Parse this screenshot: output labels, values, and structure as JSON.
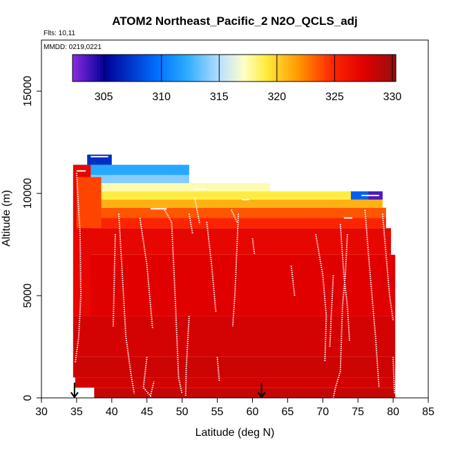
{
  "chart_data": {
    "type": "heatmap",
    "title": "ATOM2 Northeast_Pacific_2 N2O_QCLS_adj",
    "flights_note": "Flts: 10,11",
    "dates_note": "MMDD: 0219,0221",
    "xlabel": "Latitude (deg N)",
    "ylabel": "Altitude (m)",
    "xlim": [
      30,
      85
    ],
    "ylim": [
      0,
      17500
    ],
    "x_ticks": [
      30,
      35,
      40,
      45,
      50,
      55,
      60,
      65,
      70,
      75,
      80,
      85
    ],
    "y_ticks": [
      0,
      5000,
      10000,
      15000
    ],
    "colorbar": {
      "range": [
        302.3,
        330.3
      ],
      "ticks": [
        305,
        310,
        315,
        320,
        325,
        330
      ],
      "dividers": [
        305,
        310,
        315,
        320,
        325,
        330
      ]
    },
    "arrow_latitudes": [
      34.7,
      61.3
    ],
    "curtain_layers": [
      {
        "alt": [
          0,
          500
        ],
        "lat": [
          37.5,
          80.3
        ],
        "value": 328.5
      },
      {
        "alt": [
          500,
          1000
        ],
        "lat": [
          34.8,
          80.3
        ],
        "value": 328.0
      },
      {
        "alt": [
          1000,
          2000
        ],
        "lat": [
          34.5,
          80.3
        ],
        "value": 328.3
      },
      {
        "alt": [
          2000,
          4000
        ],
        "lat": [
          34.5,
          80.3
        ],
        "value": 328.0
      },
      {
        "alt": [
          4000,
          7000
        ],
        "lat": [
          35.0,
          80.3
        ],
        "value": 327.5
      },
      {
        "alt": [
          7000,
          8300
        ],
        "lat": [
          35.0,
          79.7
        ],
        "value": 327.0
      },
      {
        "alt": [
          8300,
          8800
        ],
        "lat": [
          35.0,
          79.0
        ],
        "value": 325.0
      },
      {
        "alt": [
          8800,
          9300
        ],
        "lat": [
          35.0,
          79.0
        ],
        "value": 323.5
      },
      {
        "alt": [
          9300,
          9700
        ],
        "lat": [
          35.0,
          78.5
        ],
        "value": 321.0
      },
      {
        "alt": [
          9700,
          10100
        ],
        "lat": [
          35.0,
          78.5
        ],
        "value": 319.0
      },
      {
        "alt": [
          10100,
          10500
        ],
        "lat": [
          35.0,
          62.5
        ],
        "value": 317.5
      },
      {
        "alt": [
          10500,
          10900
        ],
        "lat": [
          35.0,
          51.0
        ],
        "value": 314.0
      },
      {
        "alt": [
          10900,
          11400
        ],
        "lat": [
          35.0,
          51.0
        ],
        "value": 312.0
      },
      {
        "alt": [
          11400,
          11900
        ],
        "lat": [
          36.5,
          40.0
        ],
        "value": 307.0
      }
    ],
    "west_edge_columns": [
      {
        "lat": [
          34.5,
          37.0
        ],
        "alt": [
          4000,
          11400
        ],
        "value": 327.0
      },
      {
        "lat": [
          35.0,
          38.5
        ],
        "alt": [
          8300,
          10800
        ],
        "value": 324.0
      }
    ],
    "high_lat_patch": [
      {
        "lat": [
          74.0,
          78.5
        ],
        "alt": [
          9700,
          10100
        ],
        "value": 309.0
      },
      {
        "lat": [
          76.5,
          78.5
        ],
        "alt": [
          9700,
          10100
        ],
        "value": 303.5
      }
    ],
    "flight_track_segments": [
      [
        [
          35.0,
          11000
        ],
        [
          35.5,
          8000
        ],
        [
          35.6,
          5000
        ],
        [
          35.3,
          3000
        ],
        [
          34.8,
          1700
        ]
      ],
      [
        [
          40.5,
          8000
        ],
        [
          40.3,
          5000
        ],
        [
          40.2,
          3500
        ]
      ],
      [
        [
          41.0,
          9000
        ],
        [
          41.5,
          6000
        ],
        [
          42.0,
          3000
        ],
        [
          42.8,
          1000
        ],
        [
          43.2,
          200
        ]
      ],
      [
        [
          44.0,
          8800
        ],
        [
          45.0,
          6500
        ],
        [
          45.8,
          3400
        ]
      ],
      [
        [
          45.0,
          2000
        ],
        [
          44.5,
          500
        ],
        [
          45.5,
          100
        ],
        [
          46.0,
          800
        ]
      ],
      [
        [
          47.5,
          9200
        ],
        [
          48.5,
          8600
        ],
        [
          49.0,
          5000
        ],
        [
          49.5,
          1000
        ],
        [
          50.0,
          200
        ]
      ],
      [
        [
          51.0,
          9000
        ],
        [
          51.5,
          8000
        ]
      ],
      [
        [
          51.8,
          9800
        ],
        [
          52.5,
          8500
        ]
      ],
      [
        [
          51.0,
          4000
        ],
        [
          50.6,
          1500
        ],
        [
          50.5,
          100
        ]
      ],
      [
        [
          53.5,
          8600
        ],
        [
          54.2,
          6500
        ],
        [
          54.8,
          4200
        ]
      ],
      [
        [
          55.0,
          2000
        ],
        [
          55.3,
          800
        ]
      ],
      [
        [
          57.0,
          9200
        ],
        [
          57.8,
          8600
        ]
      ],
      [
        [
          58.0,
          9000
        ],
        [
          57.5,
          5000
        ],
        [
          57.2,
          3500
        ]
      ],
      [
        [
          60.0,
          7800
        ],
        [
          60.3,
          7000
        ]
      ],
      [
        [
          66.0,
          5000
        ],
        [
          65.5,
          6500
        ]
      ],
      [
        [
          69.0,
          8000
        ],
        [
          70.0,
          6000
        ],
        [
          70.5,
          4000
        ],
        [
          70.3,
          1800
        ]
      ],
      [
        [
          71.5,
          6000
        ],
        [
          71.2,
          4000
        ],
        [
          71.0,
          2500
        ]
      ],
      [
        [
          72.5,
          8500
        ],
        [
          73.0,
          6000
        ],
        [
          73.5,
          4500
        ],
        [
          73.8,
          2800
        ]
      ],
      [
        [
          73.5,
          8000
        ],
        [
          73.2,
          6000
        ],
        [
          72.8,
          4500
        ],
        [
          72.5,
          1300
        ],
        [
          71.8,
          500
        ],
        [
          71.5,
          0
        ]
      ],
      [
        [
          76.0,
          9200
        ],
        [
          76.5,
          7000
        ],
        [
          77.0,
          5000
        ],
        [
          77.5,
          3000
        ],
        [
          78.0,
          500
        ]
      ],
      [
        [
          78.5,
          9000
        ],
        [
          79.0,
          7000
        ],
        [
          79.5,
          5000
        ],
        [
          80.0,
          3800
        ]
      ],
      [
        [
          80.0,
          2000
        ],
        [
          80.2,
          200
        ]
      ]
    ],
    "flight_track_level_legs": [
      {
        "lat": [
          35.0,
          36.3
        ],
        "alt": 11100
      },
      {
        "lat": [
          37.0,
          39.5
        ],
        "alt": 11800
      },
      {
        "lat": [
          45.5,
          47.8
        ],
        "alt": 9250
      },
      {
        "lat": [
          51.6,
          53.5
        ],
        "alt": 10200
      },
      {
        "lat": [
          58.5,
          59.5
        ],
        "alt": 9700
      },
      {
        "lat": [
          73.0,
          74.2
        ],
        "alt": 8800
      },
      {
        "lat": [
          75.5,
          78.0
        ],
        "alt": 9900
      }
    ]
  }
}
